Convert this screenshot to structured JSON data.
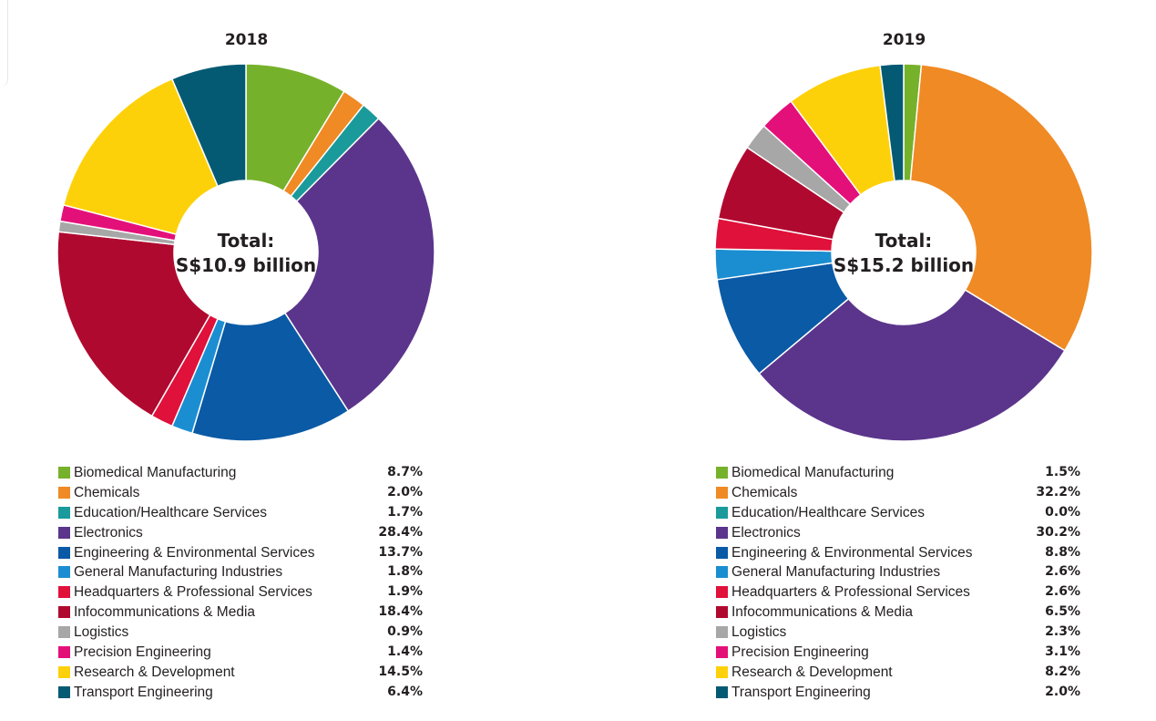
{
  "colors": {
    "Biomedical Manufacturing": "#76b12b",
    "Chemicals": "#f08a24",
    "Education/Healthcare Services": "#1a9a9a",
    "Electronics": "#5b358c",
    "Engineering & Environmental Services": "#0a5aa5",
    "General Manufacturing Industries": "#1b8ed2",
    "Headquarters & Professional Services": "#e0113a",
    "Infocommunications & Media": "#b0092f",
    "Logistics": "#a7a7a7",
    "Precision Engineering": "#e4107a",
    "Research & Development": "#fdd10a",
    "Transport Engineering": "#045a73"
  },
  "chart_data": [
    {
      "type": "pie",
      "title": "2018",
      "center_label": [
        "Total:",
        "S$10.9 billion"
      ],
      "categories": [
        "Biomedical Manufacturing",
        "Chemicals",
        "Education/Healthcare Services",
        "Electronics",
        "Engineering & Environmental Services",
        "General Manufacturing Industries",
        "Headquarters & Professional Services",
        "Infocommunications & Media",
        "Logistics",
        "Precision Engineering",
        "Research & Development",
        "Transport Engineering"
      ],
      "values": [
        8.7,
        2.0,
        1.7,
        28.4,
        13.7,
        1.8,
        1.9,
        18.4,
        0.9,
        1.4,
        14.5,
        6.4
      ],
      "value_labels": [
        "8.7%",
        "2.0%",
        "1.7%",
        "28.4%",
        "13.7%",
        "1.8%",
        "1.9%",
        "18.4%",
        "0.9%",
        "1.4%",
        "14.5%",
        "6.4%"
      ],
      "legend": "bottom"
    },
    {
      "type": "pie",
      "title": "2019",
      "center_label": [
        "Total:",
        "S$15.2 billion"
      ],
      "categories": [
        "Biomedical Manufacturing",
        "Chemicals",
        "Education/Healthcare Services",
        "Electronics",
        "Engineering & Environmental Services",
        "General Manufacturing Industries",
        "Headquarters & Professional Services",
        "Infocommunications & Media",
        "Logistics",
        "Precision Engineering",
        "Research & Development",
        "Transport Engineering"
      ],
      "values": [
        1.5,
        32.2,
        0.0,
        30.2,
        8.8,
        2.6,
        2.6,
        6.5,
        2.3,
        3.1,
        8.2,
        2.0
      ],
      "value_labels": [
        "1.5%",
        "32.2%",
        "0.0%",
        "30.2%",
        "8.8%",
        "2.6%",
        "2.6%",
        "6.5%",
        "2.3%",
        "3.1%",
        "8.2%",
        "2.0%"
      ],
      "legend": "bottom"
    }
  ]
}
